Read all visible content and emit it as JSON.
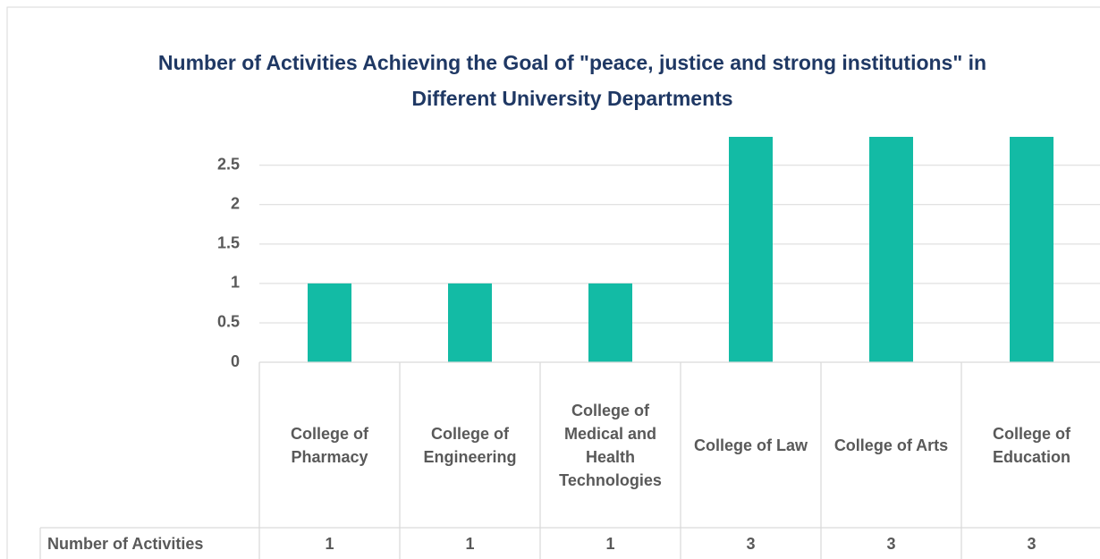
{
  "chart_data": {
    "type": "bar",
    "title": "Number of Activities Achieving the Goal of \"peace, justice and strong institutions\" in Different University Departments",
    "categories": [
      "College of Pharmacy",
      "College of Engineering",
      "College of Medical and Health Technologies",
      "College of Law",
      "College of Arts",
      "College of Education"
    ],
    "series": [
      {
        "name": "Number of Activities",
        "color": "#13bba5",
        "values": [
          1,
          1,
          1,
          3,
          3,
          3
        ]
      }
    ],
    "ylim": [
      0,
      2.86
    ],
    "yticks": [
      0,
      0.5,
      1,
      1.5,
      2,
      2.5
    ],
    "grid": true
  }
}
